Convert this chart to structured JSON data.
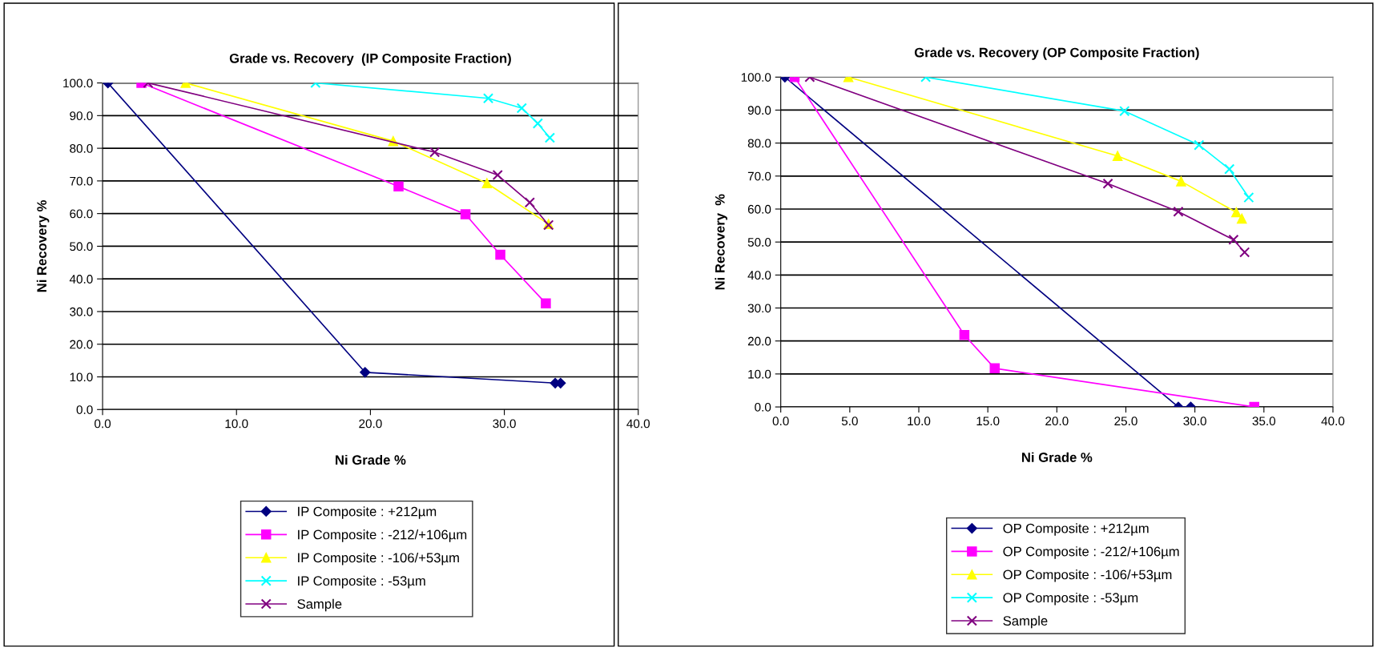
{
  "chart_data": [
    {
      "type": "line",
      "title": "Grade vs. Recovery  (IP Composite Fraction)",
      "xlabel": "Ni Grade %",
      "ylabel": "Ni Recovery %",
      "xlim": [
        0,
        40
      ],
      "ylim": [
        0,
        100
      ],
      "xticks": [
        {
          "value": 0,
          "label": "0.0"
        },
        {
          "value": 10,
          "label": "10.0"
        },
        {
          "value": 20,
          "label": "20.0"
        },
        {
          "value": 30,
          "label": "30.0"
        },
        {
          "value": 40,
          "label": "40.0"
        }
      ],
      "yticks": [
        {
          "value": 0,
          "label": "0.0"
        },
        {
          "value": 10,
          "label": "10.0"
        },
        {
          "value": 20,
          "label": "20.0"
        },
        {
          "value": 30,
          "label": "30.0"
        },
        {
          "value": 40,
          "label": "40.0"
        },
        {
          "value": 50,
          "label": "50.0"
        },
        {
          "value": 60,
          "label": "60.0"
        },
        {
          "value": 70,
          "label": "70.0"
        },
        {
          "value": 80,
          "label": "80.0"
        },
        {
          "value": 90,
          "label": "90.0"
        },
        {
          "value": 100,
          "label": "100.0"
        }
      ],
      "grid": "y",
      "legend": "bottom",
      "line_style": "solid",
      "series": [
        {
          "name": "IP Composite : +212µm",
          "color": "#000080",
          "marker": "diamond",
          "x": [
            0.4,
            19.6,
            33.8,
            34.2
          ],
          "values": [
            100,
            11.4,
            8.1,
            8.1
          ]
        },
        {
          "name": "IP Composite : -212/+106µm",
          "color": "#ff00ff",
          "marker": "square",
          "x": [
            2.9,
            22.1,
            27.1,
            29.7,
            33.1
          ],
          "values": [
            100,
            68.3,
            59.8,
            47.4,
            32.5
          ]
        },
        {
          "name": "IP Composite : -106/+53µm",
          "color": "#ffff00",
          "marker": "triangle",
          "x": [
            6.2,
            21.7,
            28.7,
            33.3
          ],
          "values": [
            100,
            82.2,
            69.3,
            56.8
          ]
        },
        {
          "name": "IP Composite : -53µm",
          "color": "#00ffff",
          "marker": "cross",
          "x": [
            15.9,
            28.8,
            31.3,
            32.5,
            33.4
          ],
          "values": [
            100,
            95.3,
            92.3,
            87.6,
            83.2
          ]
        },
        {
          "name": "Sample",
          "color": "#800080",
          "marker": "cross",
          "x": [
            3.4,
            24.8,
            29.5,
            31.9,
            33.3
          ],
          "values": [
            100,
            78.8,
            71.8,
            63.4,
            56.5
          ]
        }
      ]
    },
    {
      "type": "line",
      "title": "Grade vs. Recovery (OP Composite Fraction)",
      "xlabel": "Ni Grade %",
      "ylabel": "Ni Recovery  %",
      "xlim": [
        0,
        40
      ],
      "ylim": [
        0,
        100
      ],
      "xticks": [
        {
          "value": 0,
          "label": "0.0"
        },
        {
          "value": 5,
          "label": "5.0"
        },
        {
          "value": 10,
          "label": "10.0"
        },
        {
          "value": 15,
          "label": "15.0"
        },
        {
          "value": 20,
          "label": "20.0"
        },
        {
          "value": 25,
          "label": "25.0"
        },
        {
          "value": 30,
          "label": "30.0"
        },
        {
          "value": 35,
          "label": "35.0"
        },
        {
          "value": 40,
          "label": "40.0"
        }
      ],
      "yticks": [
        {
          "value": 0,
          "label": "0.0"
        },
        {
          "value": 10,
          "label": "10.0"
        },
        {
          "value": 20,
          "label": "20.0"
        },
        {
          "value": 30,
          "label": "30.0"
        },
        {
          "value": 40,
          "label": "40.0"
        },
        {
          "value": 50,
          "label": "50.0"
        },
        {
          "value": 60,
          "label": "60.0"
        },
        {
          "value": 70,
          "label": "70.0"
        },
        {
          "value": 80,
          "label": "80.0"
        },
        {
          "value": 90,
          "label": "90.0"
        },
        {
          "value": 100,
          "label": "100.0"
        }
      ],
      "grid": "y",
      "legend": "bottom",
      "line_style": "solid",
      "series": [
        {
          "name": "OP Composite : +212µm",
          "color": "#000080",
          "marker": "diamond",
          "x": [
            0.3,
            28.8,
            29.7
          ],
          "values": [
            100,
            0,
            0
          ]
        },
        {
          "name": "OP Composite : -212/+106µm",
          "color": "#ff00ff",
          "marker": "square",
          "x": [
            1.0,
            13.3,
            15.5,
            34.3
          ],
          "values": [
            100,
            21.8,
            11.7,
            0
          ]
        },
        {
          "name": "OP Composite : -106/+53µm",
          "color": "#ffff00",
          "marker": "triangle",
          "x": [
            4.9,
            24.4,
            29.0,
            33.0,
            33.4
          ],
          "values": [
            100,
            76.1,
            68.4,
            59.0,
            57.1
          ]
        },
        {
          "name": "OP Composite : -53µm",
          "color": "#00ffff",
          "marker": "cross",
          "x": [
            10.5,
            24.9,
            30.3,
            32.5,
            33.9
          ],
          "values": [
            100,
            89.7,
            79.4,
            72.1,
            63.5
          ]
        },
        {
          "name": "Sample",
          "color": "#800080",
          "marker": "cross",
          "x": [
            2.1,
            23.7,
            28.8,
            32.8,
            33.6
          ],
          "values": [
            100,
            67.7,
            59.2,
            50.7,
            46.9
          ]
        }
      ]
    }
  ]
}
